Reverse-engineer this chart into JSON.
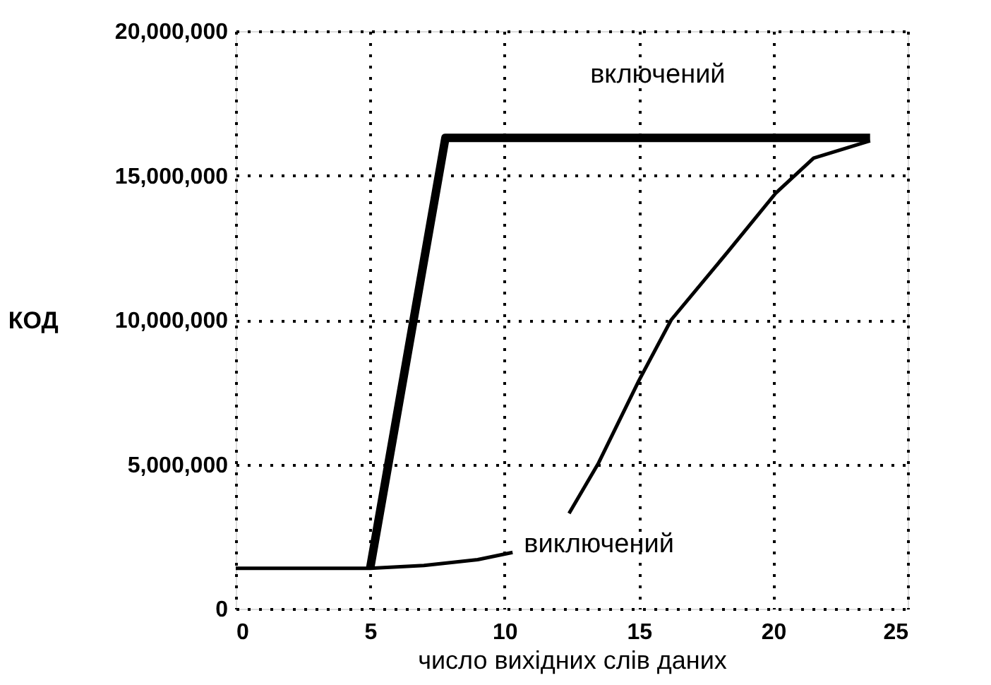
{
  "chart_data": {
    "type": "line",
    "xlabel": "число вихідних слів даних",
    "ylabel": "КОД",
    "xlim": [
      0,
      25
    ],
    "xticks": [
      0,
      5,
      10,
      15,
      20,
      25
    ],
    "ylim": [
      0,
      20000000
    ],
    "yticks": [
      0,
      {
        "value": 5000000,
        "label": "5,000,000"
      },
      {
        "value": 10000000,
        "label": "10,000,000"
      },
      {
        "value": 15000000,
        "label": "15,000,000"
      },
      {
        "value": 20000000,
        "label": "20,000,000"
      }
    ],
    "grid": true,
    "line_style": "solid",
    "marker": "none",
    "series": [
      {
        "name": "включений",
        "color": "#000000",
        "x": [
          5,
          7.8,
          23.6
        ],
        "values": [
          1400000,
          16300000,
          16300000
        ]
      },
      {
        "name": "виключений",
        "color": "#000000",
        "x": [
          0,
          5,
          7,
          9,
          10.3,
          11.4,
          12.4,
          13.5,
          15.0,
          16.2,
          18.3,
          20.1,
          21.5,
          23.6
        ],
        "values": [
          1400000,
          1400000,
          1500000,
          1700000,
          1950000,
          null,
          3300000,
          5050000,
          7900000,
          10000000,
          12350000,
          14400000,
          15600000,
          16200000
        ]
      }
    ]
  }
}
